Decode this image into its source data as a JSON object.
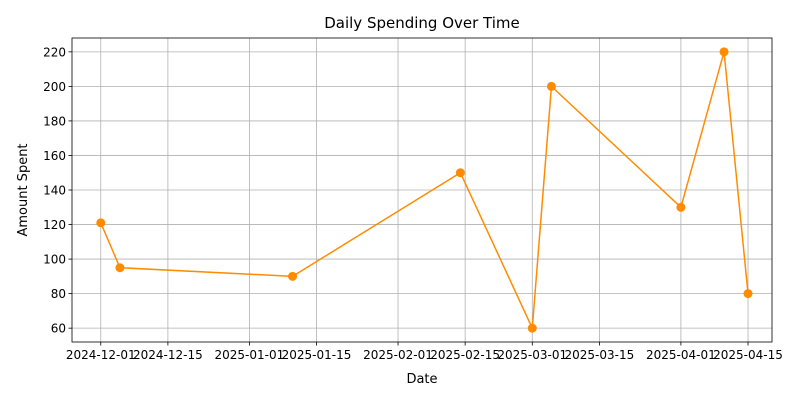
{
  "chart_data": {
    "type": "line",
    "title": "Daily Spending Over Time",
    "xlabel": "Date",
    "ylabel": "Amount Spent",
    "x_ticks": [
      "2024-12-01",
      "2024-12-15",
      "2025-01-01",
      "2025-01-15",
      "2025-02-01",
      "2025-02-15",
      "2025-03-01",
      "2025-03-15",
      "2025-04-01",
      "2025-04-15"
    ],
    "y_ticks": [
      60,
      80,
      100,
      120,
      140,
      160,
      180,
      200,
      220
    ],
    "xlim": [
      "2024-11-25",
      "2025-04-20"
    ],
    "ylim": [
      51.985,
      228.015
    ],
    "grid": true,
    "series": [
      {
        "color": "#ff8c00",
        "marker": "circle",
        "x": [
          "2024-12-01",
          "2024-12-05",
          "2025-01-10",
          "2025-02-14",
          "2025-03-01",
          "2025-03-05",
          "2025-04-01",
          "2025-04-10",
          "2025-04-15"
        ],
        "y": [
          121,
          95,
          90,
          150,
          60,
          200,
          130,
          220,
          80
        ]
      }
    ]
  }
}
